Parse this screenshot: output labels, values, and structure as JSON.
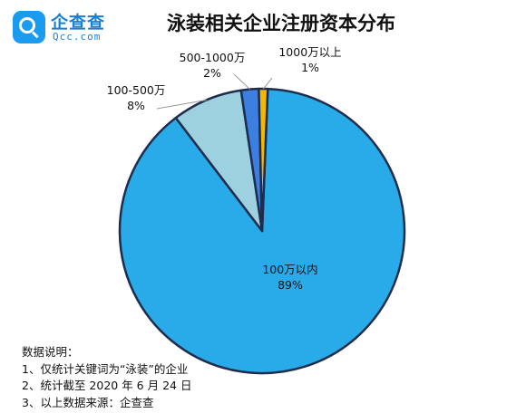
{
  "logo": {
    "name_cn": "企查查",
    "name_en": "Qcc.com"
  },
  "colors": {
    "slice_100_within": "#29abe9",
    "slice_100_500": "#9ed1e0",
    "slice_500_1000": "#3d7fe0",
    "slice_1000_above": "#f5b800",
    "outline": "#1f2d4d"
  },
  "chart_data": {
    "type": "pie",
    "title": "泳装相关企业注册资本分布",
    "slices": [
      {
        "label": "100万以内",
        "percent_label": "89%",
        "value": 89,
        "color": "#29abe9"
      },
      {
        "label": "100-500万",
        "percent_label": "8%",
        "value": 8,
        "color": "#9ed1e0"
      },
      {
        "label": "500-1000万",
        "percent_label": "2%",
        "value": 2,
        "color": "#3d7fe0"
      },
      {
        "label": "1000万以上",
        "percent_label": "1%",
        "value": 1,
        "color": "#f5b800"
      }
    ]
  },
  "notes": {
    "heading": "数据说明：",
    "lines": [
      "1、仅统计关键词为“泳装”的企业",
      "2、统计截至 2020 年 6 月 24 日",
      "3、以上数据来源：企查查"
    ]
  }
}
